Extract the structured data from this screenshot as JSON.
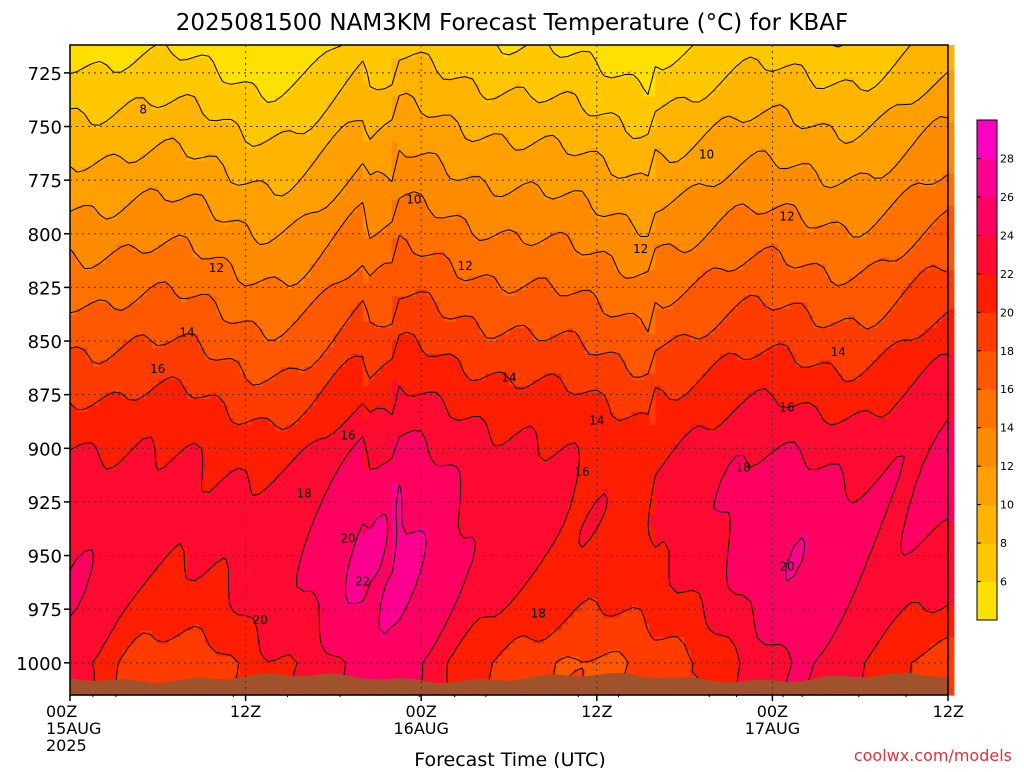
{
  "chart_data": {
    "type": "heatmap",
    "title": "2025081500 NAM3KM Forecast Temperature (°C) for KBAF",
    "xlabel": "Forecast Time (UTC)",
    "ylabel": "",
    "x_ticks": [
      {
        "hour": 0,
        "lines": [
          "00Z",
          "15AUG",
          "2025"
        ]
      },
      {
        "hour": 12,
        "lines": [
          "12Z"
        ]
      },
      {
        "hour": 24,
        "lines": [
          "00Z",
          "16AUG"
        ]
      },
      {
        "hour": 36,
        "lines": [
          "12Z"
        ]
      },
      {
        "hour": 48,
        "lines": [
          "00Z",
          "17AUG"
        ]
      },
      {
        "hour": 60,
        "lines": [
          "12Z"
        ]
      }
    ],
    "xlim": [
      0,
      60
    ],
    "y_ticks": [
      725,
      750,
      775,
      800,
      825,
      850,
      875,
      900,
      925,
      950,
      975,
      1000
    ],
    "ylim": [
      712,
      1015
    ],
    "grid": true,
    "colorbar": {
      "levels": [
        4,
        6,
        8,
        10,
        12,
        14,
        16,
        18,
        20,
        22,
        24,
        26,
        28,
        30
      ],
      "labels": [
        6,
        8,
        10,
        12,
        14,
        16,
        18,
        20,
        22,
        24,
        26,
        28
      ],
      "colors": [
        "#ffe000",
        "#ffc800",
        "#ffb400",
        "#ffa000",
        "#ff8c00",
        "#ff7200",
        "#ff5800",
        "#ff3c00",
        "#ff1f00",
        "#ff0a30",
        "#ff0060",
        "#ff0090",
        "#ff00c0"
      ]
    },
    "contour_labels": [
      {
        "text": "8",
        "hour": 5,
        "p": 742
      },
      {
        "text": "10",
        "hour": 23.5,
        "p": 784
      },
      {
        "text": "10",
        "hour": 43.5,
        "p": 763
      },
      {
        "text": "12",
        "hour": 10,
        "p": 816
      },
      {
        "text": "12",
        "hour": 27,
        "p": 815
      },
      {
        "text": "12",
        "hour": 39,
        "p": 807
      },
      {
        "text": "12",
        "hour": 49,
        "p": 792
      },
      {
        "text": "14",
        "hour": 8,
        "p": 846
      },
      {
        "text": "14",
        "hour": 30,
        "p": 867
      },
      {
        "text": "14",
        "hour": 36,
        "p": 887
      },
      {
        "text": "14",
        "hour": 52.5,
        "p": 855
      },
      {
        "text": "16",
        "hour": 6,
        "p": 863
      },
      {
        "text": "16",
        "hour": 19,
        "p": 894
      },
      {
        "text": "16",
        "hour": 35,
        "p": 911
      },
      {
        "text": "16",
        "hour": 49,
        "p": 881
      },
      {
        "text": "18",
        "hour": 16,
        "p": 921
      },
      {
        "text": "18",
        "hour": 46,
        "p": 909
      },
      {
        "text": "18",
        "hour": 32,
        "p": 977
      },
      {
        "text": "20",
        "hour": 19,
        "p": 942
      },
      {
        "text": "20",
        "hour": 13,
        "p": 980
      },
      {
        "text": "20",
        "hour": 49,
        "p": 955
      },
      {
        "text": "22",
        "hour": 20,
        "p": 962
      }
    ],
    "terrain_color": "#a0522d"
  },
  "watermark": "coolwx.com/models"
}
